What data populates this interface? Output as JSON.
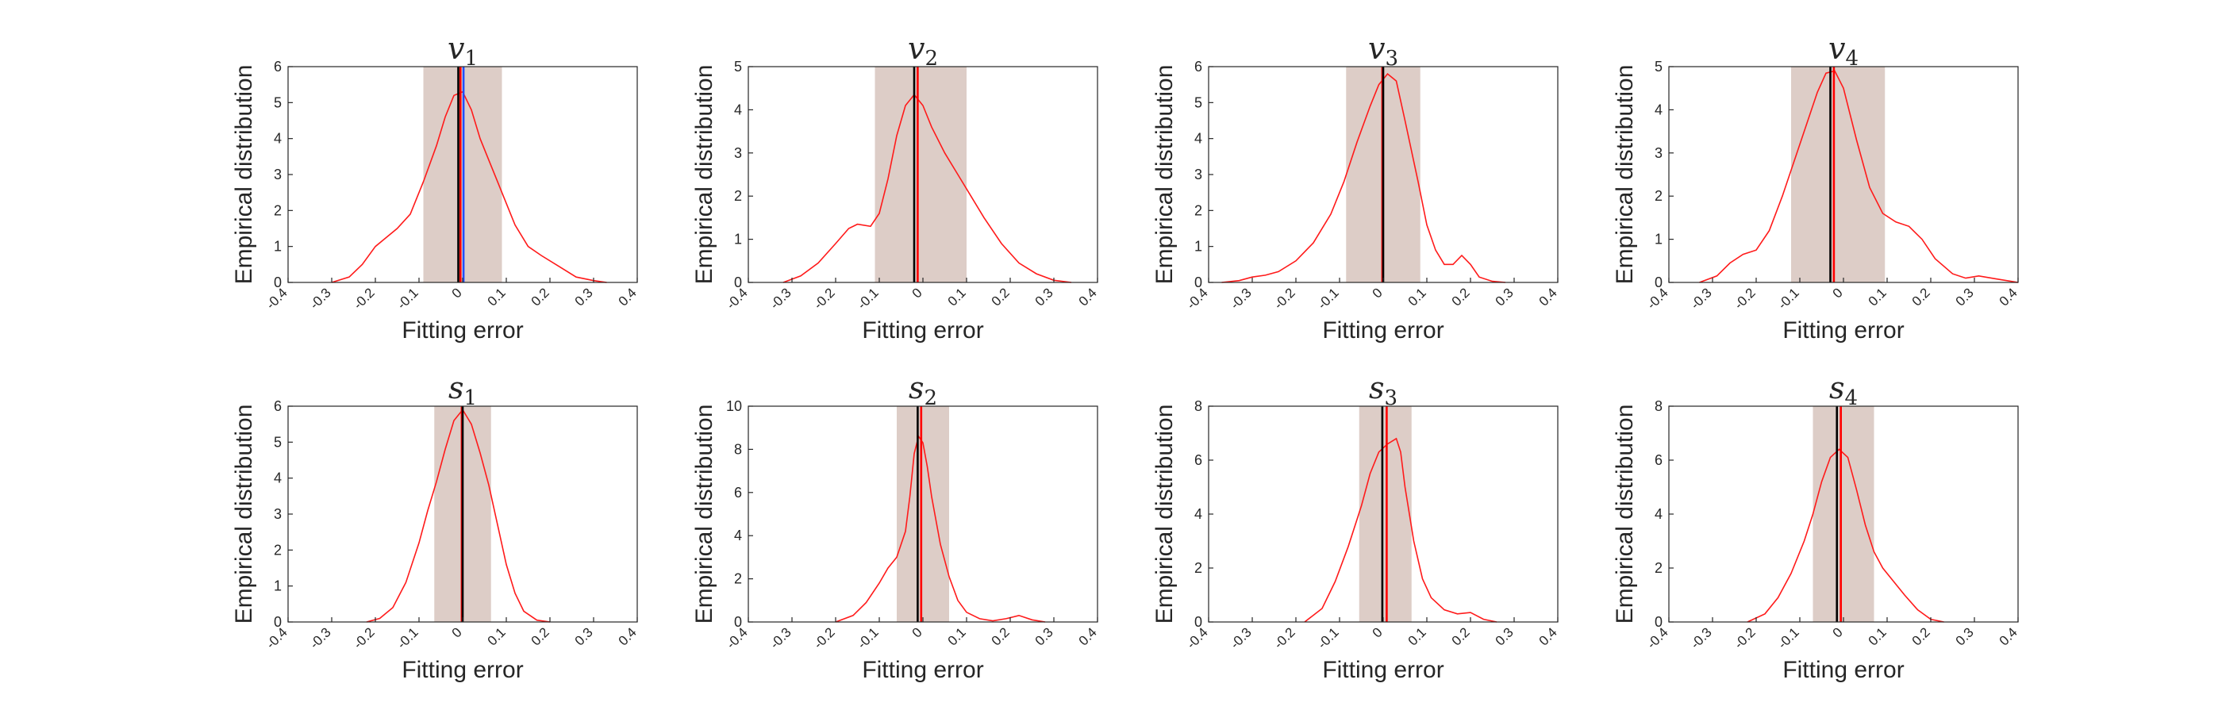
{
  "figure": {
    "colors": {
      "density": "#ff1a1a",
      "band": "#ddcdc7",
      "black_line": "#000000",
      "red_line": "#ff0000",
      "blue_line": "#1f4fff",
      "axes": "#262626"
    }
  },
  "chart_data": [
    {
      "type": "line",
      "title_var": "v",
      "title_sub": "1",
      "xlabel": "Fitting error",
      "ylabel": "Empirical distribution",
      "xlim": [
        -0.4,
        0.4
      ],
      "ylim": [
        0,
        6
      ],
      "xticks": [
        "-0.4",
        "-0.3",
        "-0.2",
        "-0.1",
        "0",
        "0.1",
        "0.2",
        "0.3",
        "0.4"
      ],
      "yticks": [
        "0",
        "1",
        "2",
        "3",
        "4",
        "5",
        "6"
      ],
      "band": [
        -0.09,
        0.09
      ],
      "vlines": [
        {
          "x": -0.01,
          "color": "black"
        },
        {
          "x": -0.005,
          "color": "red"
        },
        {
          "x": 0.002,
          "color": "blue"
        }
      ],
      "series": [
        {
          "x": [
            -0.3,
            -0.26,
            -0.23,
            -0.2,
            -0.18,
            -0.15,
            -0.12,
            -0.09,
            -0.06,
            -0.04,
            -0.02,
            0.0,
            0.02,
            0.04,
            0.06,
            0.08,
            0.1,
            0.12,
            0.15,
            0.18,
            0.22,
            0.26,
            0.3,
            0.33
          ],
          "y": [
            0,
            0.15,
            0.5,
            1.0,
            1.2,
            1.5,
            1.9,
            2.8,
            3.8,
            4.6,
            5.2,
            5.3,
            4.8,
            4.0,
            3.4,
            2.8,
            2.2,
            1.6,
            1.0,
            0.75,
            0.45,
            0.15,
            0.05,
            0
          ]
        }
      ]
    },
    {
      "type": "line",
      "title_var": "v",
      "title_sub": "2",
      "xlabel": "Fitting error",
      "ylabel": "Empirical distribution",
      "xlim": [
        -0.4,
        0.4
      ],
      "ylim": [
        0,
        5
      ],
      "xticks": [
        "-0.4",
        "-0.3",
        "-0.2",
        "-0.1",
        "0",
        "0.1",
        "0.2",
        "0.3",
        "0.4"
      ],
      "yticks": [
        "0",
        "1",
        "2",
        "3",
        "4",
        "5"
      ],
      "band": [
        -0.11,
        0.1
      ],
      "vlines": [
        {
          "x": -0.02,
          "color": "black"
        },
        {
          "x": -0.012,
          "color": "red"
        }
      ],
      "series": [
        {
          "x": [
            -0.32,
            -0.28,
            -0.24,
            -0.2,
            -0.17,
            -0.15,
            -0.12,
            -0.1,
            -0.08,
            -0.06,
            -0.04,
            -0.02,
            0.0,
            0.02,
            0.05,
            0.08,
            0.11,
            0.14,
            0.18,
            0.22,
            0.26,
            0.3,
            0.34
          ],
          "y": [
            0,
            0.15,
            0.45,
            0.9,
            1.25,
            1.35,
            1.3,
            1.6,
            2.4,
            3.4,
            4.1,
            4.35,
            4.1,
            3.6,
            3.0,
            2.5,
            2.0,
            1.5,
            0.9,
            0.45,
            0.2,
            0.05,
            0
          ]
        }
      ]
    },
    {
      "type": "line",
      "title_var": "v",
      "title_sub": "3",
      "xlabel": "Fitting error",
      "ylabel": "Empirical distribution",
      "xlim": [
        -0.4,
        0.4
      ],
      "ylim": [
        0,
        6
      ],
      "xticks": [
        "-0.4",
        "-0.3",
        "-0.2",
        "-0.1",
        "0",
        "0.1",
        "0.2",
        "0.3",
        "0.4"
      ],
      "yticks": [
        "0",
        "1",
        "2",
        "3",
        "4",
        "5",
        "6"
      ],
      "band": [
        -0.085,
        0.085
      ],
      "vlines": [
        {
          "x": -0.002,
          "color": "red"
        },
        {
          "x": 0.0,
          "color": "black"
        }
      ],
      "series": [
        {
          "x": [
            -0.37,
            -0.33,
            -0.3,
            -0.27,
            -0.24,
            -0.2,
            -0.16,
            -0.12,
            -0.09,
            -0.06,
            -0.03,
            -0.01,
            0.01,
            0.03,
            0.05,
            0.08,
            0.1,
            0.12,
            0.14,
            0.16,
            0.18,
            0.2,
            0.22,
            0.25,
            0.28
          ],
          "y": [
            0,
            0.05,
            0.15,
            0.2,
            0.3,
            0.6,
            1.1,
            1.9,
            2.8,
            3.9,
            4.9,
            5.5,
            5.8,
            5.6,
            4.5,
            2.8,
            1.6,
            0.9,
            0.5,
            0.5,
            0.75,
            0.5,
            0.15,
            0.03,
            0
          ]
        }
      ]
    },
    {
      "type": "line",
      "title_var": "v",
      "title_sub": "4",
      "xlabel": "Fitting error",
      "ylabel": "Empirical distribution",
      "xlim": [
        -0.4,
        0.4
      ],
      "ylim": [
        0,
        5
      ],
      "xticks": [
        "-0.4",
        "-0.3",
        "-0.2",
        "-0.1",
        "0",
        "0.1",
        "0.2",
        "0.3",
        "0.4"
      ],
      "yticks": [
        "0",
        "1",
        "2",
        "3",
        "4",
        "5"
      ],
      "band": [
        -0.12,
        0.095
      ],
      "vlines": [
        {
          "x": -0.03,
          "color": "black"
        },
        {
          "x": -0.022,
          "color": "red"
        }
      ],
      "series": [
        {
          "x": [
            -0.33,
            -0.29,
            -0.26,
            -0.23,
            -0.2,
            -0.17,
            -0.14,
            -0.11,
            -0.08,
            -0.06,
            -0.04,
            -0.02,
            0.0,
            0.03,
            0.06,
            0.09,
            0.12,
            0.15,
            0.18,
            0.21,
            0.25,
            0.28,
            0.31,
            0.35,
            0.4
          ],
          "y": [
            0,
            0.15,
            0.45,
            0.65,
            0.75,
            1.2,
            2.0,
            2.9,
            3.8,
            4.4,
            4.85,
            4.9,
            4.5,
            3.3,
            2.2,
            1.6,
            1.4,
            1.3,
            1.0,
            0.55,
            0.2,
            0.1,
            0.15,
            0.08,
            0
          ]
        }
      ]
    },
    {
      "type": "line",
      "title_var": "s",
      "title_sub": "1",
      "xlabel": "Fitting error",
      "ylabel": "Empirical distribution",
      "xlim": [
        -0.4,
        0.4
      ],
      "ylim": [
        0,
        6
      ],
      "xticks": [
        "-0.4",
        "-0.3",
        "-0.2",
        "-0.1",
        "0",
        "0.1",
        "0.2",
        "0.3",
        "0.4"
      ],
      "yticks": [
        "0",
        "1",
        "2",
        "3",
        "4",
        "5",
        "6"
      ],
      "band": [
        -0.065,
        0.065
      ],
      "vlines": [
        {
          "x": -0.002,
          "color": "red"
        },
        {
          "x": 0.0,
          "color": "black"
        }
      ],
      "series": [
        {
          "x": [
            -0.22,
            -0.19,
            -0.16,
            -0.13,
            -0.1,
            -0.08,
            -0.06,
            -0.04,
            -0.02,
            0.0,
            0.02,
            0.04,
            0.06,
            0.08,
            0.1,
            0.12,
            0.14,
            0.17,
            0.2
          ],
          "y": [
            0,
            0.1,
            0.4,
            1.1,
            2.2,
            3.1,
            3.9,
            4.8,
            5.6,
            5.9,
            5.5,
            4.7,
            3.8,
            2.7,
            1.6,
            0.8,
            0.3,
            0.05,
            0
          ]
        }
      ]
    },
    {
      "type": "line",
      "title_var": "s",
      "title_sub": "2",
      "xlabel": "Fitting error",
      "ylabel": "Empirical distribution",
      "xlim": [
        -0.4,
        0.4
      ],
      "ylim": [
        0,
        10
      ],
      "xticks": [
        "-0.4",
        "-0.3",
        "-0.2",
        "-0.1",
        "0",
        "0.1",
        "0.2",
        "0.3",
        "0.4"
      ],
      "yticks": [
        "0",
        "2",
        "4",
        "6",
        "8",
        "10"
      ],
      "band": [
        -0.06,
        0.06
      ],
      "vlines": [
        {
          "x": -0.012,
          "color": "black"
        },
        {
          "x": -0.004,
          "color": "red"
        }
      ],
      "series": [
        {
          "x": [
            -0.2,
            -0.16,
            -0.13,
            -0.1,
            -0.08,
            -0.06,
            -0.04,
            -0.03,
            -0.02,
            -0.01,
            0.0,
            0.01,
            0.02,
            0.04,
            0.06,
            0.08,
            0.1,
            0.13,
            0.16,
            0.19,
            0.22,
            0.25,
            0.28
          ],
          "y": [
            0,
            0.3,
            0.9,
            1.8,
            2.5,
            3.0,
            4.2,
            5.8,
            7.8,
            8.6,
            8.3,
            7.2,
            5.8,
            3.6,
            2.1,
            1.0,
            0.45,
            0.15,
            0.05,
            0.15,
            0.3,
            0.1,
            0
          ]
        }
      ]
    },
    {
      "type": "line",
      "title_var": "s",
      "title_sub": "3",
      "xlabel": "Fitting error",
      "ylabel": "Empirical distribution",
      "xlim": [
        -0.4,
        0.4
      ],
      "ylim": [
        0,
        8
      ],
      "xticks": [
        "-0.4",
        "-0.3",
        "-0.2",
        "-0.1",
        "0",
        "0.1",
        "0.2",
        "0.3",
        "0.4"
      ],
      "yticks": [
        "0",
        "2",
        "4",
        "6",
        "8"
      ],
      "band": [
        -0.055,
        0.065
      ],
      "vlines": [
        {
          "x": -0.002,
          "color": "black"
        },
        {
          "x": 0.008,
          "color": "red"
        }
      ],
      "series": [
        {
          "x": [
            -0.18,
            -0.14,
            -0.11,
            -0.08,
            -0.05,
            -0.03,
            -0.01,
            0.01,
            0.03,
            0.04,
            0.05,
            0.07,
            0.09,
            0.11,
            0.14,
            0.17,
            0.2,
            0.23,
            0.26
          ],
          "y": [
            0,
            0.5,
            1.5,
            2.8,
            4.3,
            5.5,
            6.3,
            6.6,
            6.8,
            6.3,
            5.0,
            3.0,
            1.6,
            0.9,
            0.45,
            0.3,
            0.35,
            0.1,
            0
          ]
        }
      ]
    },
    {
      "type": "line",
      "title_var": "s",
      "title_sub": "4",
      "xlabel": "Fitting error",
      "ylabel": "Empirical distribution",
      "xlim": [
        -0.4,
        0.4
      ],
      "ylim": [
        0,
        8
      ],
      "xticks": [
        "-0.4",
        "-0.3",
        "-0.2",
        "-0.1",
        "0",
        "0.1",
        "0.2",
        "0.3",
        "0.4"
      ],
      "yticks": [
        "0",
        "2",
        "4",
        "6",
        "8"
      ],
      "band": [
        -0.07,
        0.07
      ],
      "vlines": [
        {
          "x": -0.015,
          "color": "black"
        },
        {
          "x": -0.006,
          "color": "red"
        }
      ],
      "series": [
        {
          "x": [
            -0.22,
            -0.18,
            -0.15,
            -0.12,
            -0.09,
            -0.07,
            -0.05,
            -0.03,
            -0.01,
            0.01,
            0.03,
            0.05,
            0.07,
            0.09,
            0.11,
            0.14,
            0.17,
            0.2,
            0.23
          ],
          "y": [
            0,
            0.3,
            0.9,
            1.8,
            3.0,
            4.0,
            5.2,
            6.1,
            6.4,
            6.1,
            4.9,
            3.6,
            2.6,
            2.0,
            1.6,
            1.0,
            0.45,
            0.1,
            0
          ]
        }
      ]
    }
  ]
}
